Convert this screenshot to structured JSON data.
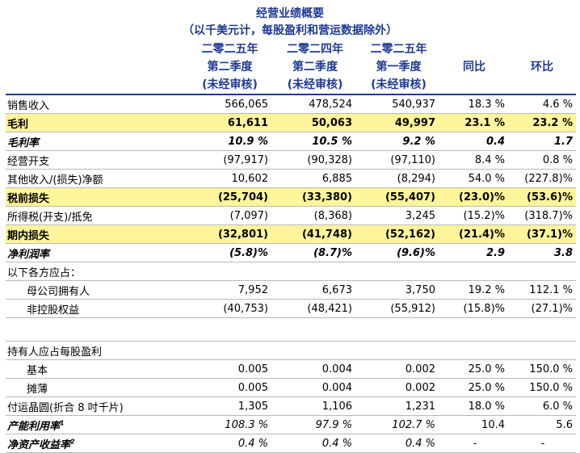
{
  "title": "经营业绩概要",
  "subtitle": "（以千美元计，每股盈利和营运数据除外）",
  "columns": [
    "二零二五年 第二季度 (未经审核)",
    "二零二四年 第二季度 (未经审核)",
    "二零二五年 第一季度 (未经审核)",
    "同比",
    "环比"
  ],
  "headers": [
    {
      "l1": "二零二五年",
      "l2": "第二季度",
      "l3": "(未经审核)"
    },
    {
      "l1": "二零二四年",
      "l2": "第二季度",
      "l3": "(未经审核)"
    },
    {
      "l1": "二零二五年",
      "l2": "第一季度",
      "l3": "(未经审核)"
    },
    {
      "l1": "",
      "l2": "同比",
      "l3": ""
    },
    {
      "l1": "",
      "l2": "环比",
      "l3": ""
    }
  ],
  "rows": [
    {
      "label": "销售收入",
      "c1": "566,065",
      "c2": "478,524",
      "c3": "540,937",
      "yoy": "18.3 %",
      "qoq": "4.6 %"
    },
    {
      "label": "毛利",
      "c1": "61,611",
      "c2": "50,063",
      "c3": "49,997",
      "yoy": "23.1 %",
      "qoq": "23.2 %"
    },
    {
      "label": "毛利率",
      "c1": "10.9 %",
      "c2": "10.5 %",
      "c3": "9.2 %",
      "yoy": "0.4",
      "qoq": "1.7"
    },
    {
      "label": "经营开支",
      "c1": "(97,917)",
      "c2": "(90,328)",
      "c3": "(97,110)",
      "yoy": "8.4 %",
      "qoq": "0.8 %"
    },
    {
      "label": "其他收入/(损失)净额",
      "c1": "10,602",
      "c2": "6,885",
      "c3": "(8,294)",
      "yoy": "54.0 %",
      "qoq": "(227.8)%"
    },
    {
      "label": "税前损失",
      "c1": "(25,704)",
      "c2": "(33,380)",
      "c3": "(55,407)",
      "yoy": "(23.0)%",
      "qoq": "(53.6)%"
    },
    {
      "label": "所得税(开支)/抵免",
      "c1": "(7,097)",
      "c2": "(8,368)",
      "c3": "3,245",
      "yoy": "(15.2)%",
      "qoq": "(318.7)%"
    },
    {
      "label": "期内损失",
      "c1": "(32,801)",
      "c2": "(41,748)",
      "c3": "(52,162)",
      "yoy": "(21.4)%",
      "qoq": "(37.1)%"
    },
    {
      "label": "净利润率",
      "c1": "(5.8)%",
      "c2": "(8.7)%",
      "c3": "(9.6)%",
      "yoy": "2.9",
      "qoq": "3.8"
    },
    {
      "label": "以下各方应占：",
      "c1": "",
      "c2": "",
      "c3": "",
      "yoy": "",
      "qoq": ""
    },
    {
      "label": "母公司拥有人",
      "c1": "7,952",
      "c2": "6,673",
      "c3": "3,750",
      "yoy": "19.2 %",
      "qoq": "112.1 %"
    },
    {
      "label": "非控股权益",
      "c1": "(40,753)",
      "c2": "(48,421)",
      "c3": "(55,912)",
      "yoy": "(15.8)%",
      "qoq": "(27.1)%"
    },
    {
      "label": "持有人应占每股盈利",
      "c1": "",
      "c2": "",
      "c3": "",
      "yoy": "",
      "qoq": ""
    },
    {
      "label": "基本",
      "c1": "0.005",
      "c2": "0.004",
      "c3": "0.002",
      "yoy": "25.0 %",
      "qoq": "150.0 %"
    },
    {
      "label": "摊薄",
      "c1": "0.005",
      "c2": "0.004",
      "c3": "0.002",
      "yoy": "25.0 %",
      "qoq": "150.0 %"
    },
    {
      "label": "付运晶圆(折合 8 吋千片)",
      "c1": "1,305",
      "c2": "1,106",
      "c3": "1,231",
      "yoy": "18.0 %",
      "qoq": "6.0 %"
    },
    {
      "label": "产能利用率",
      "sup": "1",
      "c1": "108.3 %",
      "c2": "97.9 %",
      "c3": "102.7 %",
      "yoy": "10.4",
      "qoq": "5.6"
    },
    {
      "label": "净资产收益率",
      "sup": "2",
      "c1": "0.4 %",
      "c2": "0.4 %",
      "c3": "0.4 %",
      "yoy": "-",
      "qoq": "-"
    }
  ],
  "highlight_color": "#fff59a",
  "header_color": "#1f3a93"
}
